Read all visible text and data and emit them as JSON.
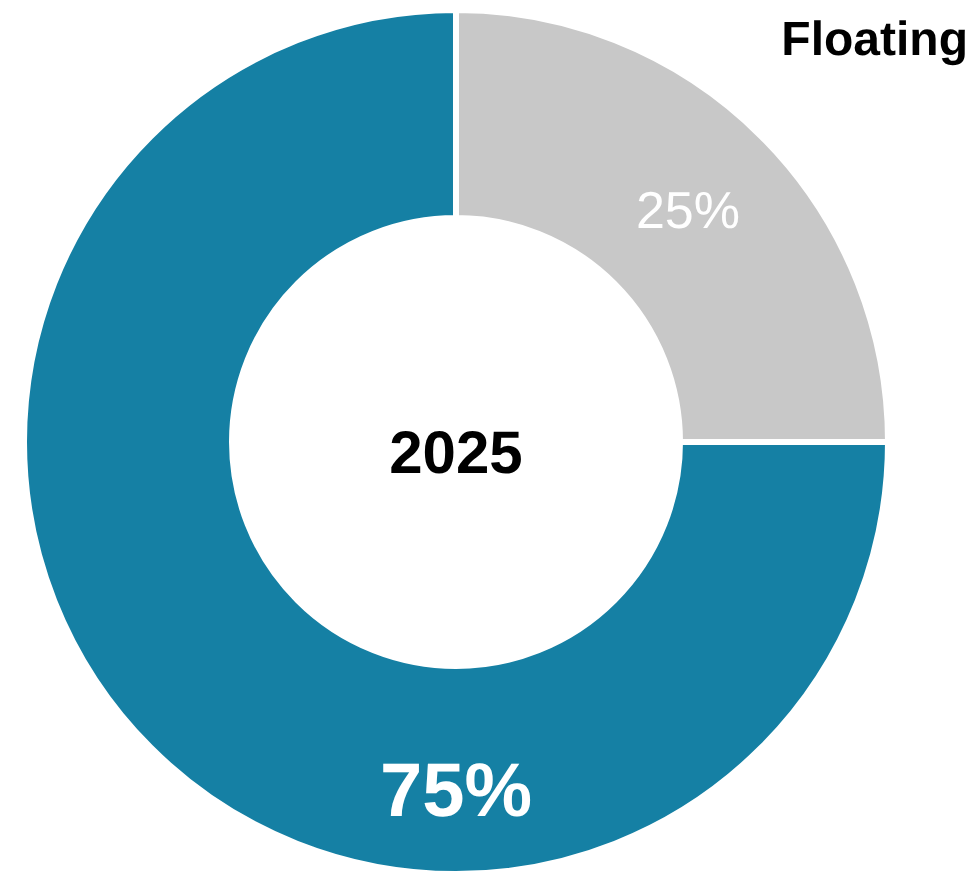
{
  "chart_data": {
    "type": "donut",
    "title": "2025",
    "categories": [
      "Floating",
      null
    ],
    "values": [
      25,
      75
    ],
    "colors": [
      "#c8c8c8",
      "#1580a4"
    ],
    "value_labels": [
      "25%",
      "75%"
    ]
  }
}
